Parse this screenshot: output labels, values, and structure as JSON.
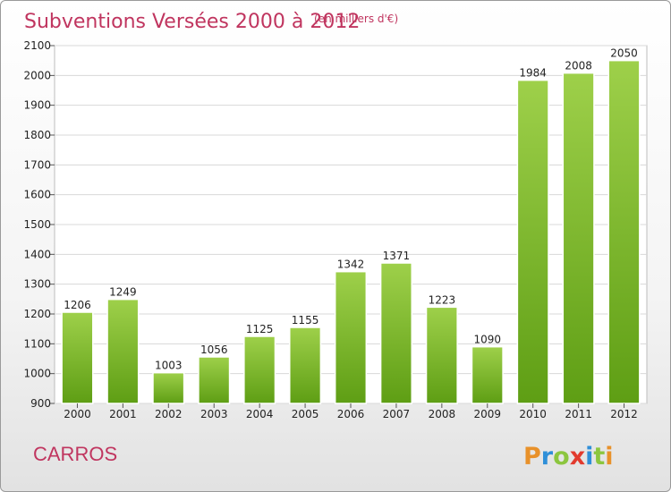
{
  "chart_data": {
    "type": "bar",
    "title": "Subventions Versées 2000 à 2012",
    "subtitle": "(en milliers d'€)",
    "categories": [
      "2000",
      "2001",
      "2002",
      "2003",
      "2004",
      "2005",
      "2006",
      "2007",
      "2008",
      "2009",
      "2010",
      "2011",
      "2012"
    ],
    "values": [
      1206,
      1249,
      1003,
      1056,
      1125,
      1155,
      1342,
      1371,
      1223,
      1090,
      1984,
      2008,
      2050
    ],
    "ylim": [
      900,
      2100
    ],
    "yticks": [
      900,
      1000,
      1100,
      1200,
      1300,
      1400,
      1500,
      1600,
      1700,
      1800,
      1900,
      2000,
      2100
    ],
    "grid": true,
    "bar_color": "#7cbf2a",
    "title_color": "#c0355f"
  },
  "commune": "CARROS",
  "logo": {
    "text": "Proxiti",
    "letter_colors": [
      "#e8912a",
      "#2f8fd8",
      "#8cc63f",
      "#e23b2e",
      "#2f8fd8",
      "#8cc63f",
      "#e8912a"
    ]
  }
}
